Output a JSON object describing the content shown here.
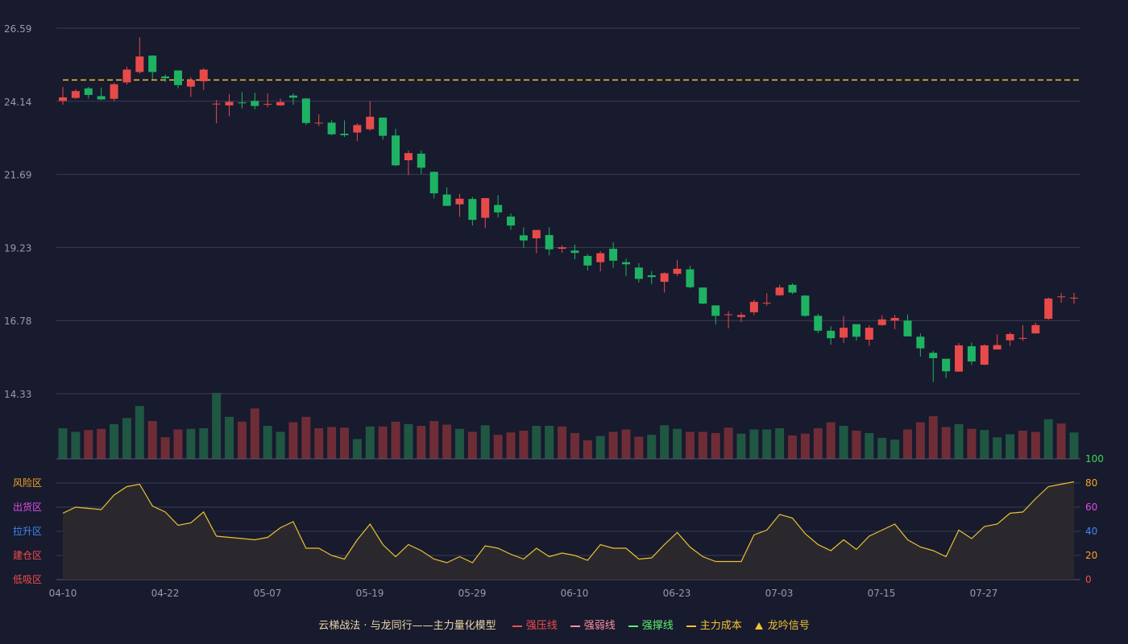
{
  "chart_data": {
    "type": "candlestick",
    "x_tick_labels": [
      "04-10",
      "04-22",
      "05-07",
      "05-19",
      "05-29",
      "06-10",
      "06-23",
      "07-03",
      "07-15",
      "07-27"
    ],
    "price_axis": {
      "ticks": [
        "26.59",
        "24.14",
        "21.69",
        "19.23",
        "16.78",
        "14.33"
      ],
      "min": 14.33,
      "max": 26.59
    },
    "cost_line": 24.85,
    "candles": [
      [
        24.15,
        24.27,
        24.62,
        24.02
      ],
      [
        24.25,
        24.48,
        24.54,
        24.22
      ],
      [
        24.57,
        24.35,
        24.62,
        24.23
      ],
      [
        24.31,
        24.2,
        24.6,
        24.18
      ],
      [
        24.22,
        24.71,
        24.75,
        24.15
      ],
      [
        24.77,
        25.2,
        25.3,
        24.7
      ],
      [
        25.12,
        25.64,
        26.28,
        25.06
      ],
      [
        25.67,
        25.12,
        25.68,
        24.87
      ],
      [
        24.97,
        24.91,
        25.04,
        24.79
      ],
      [
        25.17,
        24.68,
        25.18,
        24.57
      ],
      [
        24.63,
        24.85,
        24.95,
        24.28
      ],
      [
        24.81,
        25.2,
        25.25,
        24.52
      ],
      [
        24.05,
        24.06,
        24.18,
        23.4
      ],
      [
        24.0,
        24.12,
        24.38,
        23.63
      ],
      [
        24.1,
        24.07,
        24.45,
        23.9
      ],
      [
        24.15,
        23.98,
        24.42,
        23.87
      ],
      [
        24.05,
        24.05,
        24.4,
        23.94
      ],
      [
        24.0,
        24.11,
        24.23,
        23.98
      ],
      [
        24.33,
        24.26,
        24.4,
        24.02
      ],
      [
        24.23,
        23.41,
        24.25,
        23.34
      ],
      [
        23.41,
        23.42,
        23.7,
        23.31
      ],
      [
        23.42,
        23.03,
        23.5,
        23.0
      ],
      [
        23.05,
        23.0,
        23.5,
        22.94
      ],
      [
        23.09,
        23.34,
        23.4,
        22.8
      ],
      [
        23.2,
        23.62,
        24.14,
        23.15
      ],
      [
        23.59,
        22.98,
        23.59,
        22.85
      ],
      [
        22.99,
        21.99,
        23.22,
        21.96
      ],
      [
        22.16,
        22.4,
        22.49,
        21.66
      ],
      [
        22.38,
        21.91,
        22.49,
        21.7
      ],
      [
        21.77,
        21.05,
        21.79,
        20.88
      ],
      [
        21.01,
        20.63,
        21.25,
        20.63
      ],
      [
        20.68,
        20.87,
        21.03,
        20.26
      ],
      [
        20.86,
        20.16,
        20.93,
        19.97
      ],
      [
        20.23,
        20.89,
        20.89,
        19.88
      ],
      [
        20.66,
        20.41,
        20.99,
        20.24
      ],
      [
        20.27,
        19.97,
        20.37,
        19.83
      ],
      [
        19.64,
        19.47,
        19.91,
        19.22
      ],
      [
        19.54,
        19.82,
        19.81,
        19.04
      ],
      [
        19.65,
        19.17,
        19.91,
        18.97
      ],
      [
        19.19,
        19.24,
        19.31,
        19.05
      ],
      [
        19.13,
        19.05,
        19.33,
        18.84
      ],
      [
        18.95,
        18.63,
        19.01,
        18.46
      ],
      [
        18.74,
        19.04,
        19.11,
        18.43
      ],
      [
        19.19,
        18.79,
        19.41,
        18.54
      ],
      [
        18.74,
        18.67,
        18.86,
        18.27
      ],
      [
        18.56,
        18.18,
        18.71,
        18.06
      ],
      [
        18.3,
        18.24,
        18.44,
        18.0
      ],
      [
        18.08,
        18.37,
        18.4,
        17.72
      ],
      [
        18.35,
        18.52,
        18.82,
        18.27
      ],
      [
        18.5,
        17.9,
        18.62,
        17.86
      ],
      [
        17.89,
        17.35,
        17.88,
        17.33
      ],
      [
        17.29,
        16.94,
        17.28,
        16.65
      ],
      [
        16.97,
        16.99,
        17.1,
        16.52
      ],
      [
        16.9,
        16.97,
        17.05,
        16.73
      ],
      [
        17.06,
        17.41,
        17.48,
        16.96
      ],
      [
        17.36,
        17.38,
        17.7,
        17.28
      ],
      [
        17.63,
        17.89,
        17.98,
        17.61
      ],
      [
        17.98,
        17.72,
        18.03,
        17.67
      ],
      [
        17.62,
        16.94,
        17.63,
        16.91
      ],
      [
        16.94,
        16.44,
        17.01,
        16.36
      ],
      [
        16.44,
        16.19,
        16.59,
        15.97
      ],
      [
        16.21,
        16.54,
        16.94,
        16.03
      ],
      [
        16.66,
        16.24,
        16.66,
        16.11
      ],
      [
        16.14,
        16.54,
        16.62,
        15.93
      ],
      [
        16.63,
        16.82,
        16.96,
        16.6
      ],
      [
        16.78,
        16.87,
        16.97,
        16.49
      ],
      [
        16.78,
        16.25,
        16.99,
        16.3
      ],
      [
        16.24,
        15.85,
        16.35,
        15.57
      ],
      [
        15.7,
        15.52,
        15.77,
        14.72
      ],
      [
        15.5,
        15.08,
        15.5,
        14.85
      ],
      [
        15.07,
        15.95,
        16.03,
        15.06
      ],
      [
        15.92,
        15.41,
        16.04,
        15.29
      ],
      [
        15.3,
        15.95,
        15.99,
        15.29
      ],
      [
        15.81,
        15.96,
        16.32,
        15.85
      ],
      [
        16.12,
        16.33,
        16.39,
        15.93
      ],
      [
        16.17,
        16.2,
        16.63,
        16.1
      ],
      [
        16.35,
        16.63,
        16.71,
        16.35
      ],
      [
        16.84,
        17.52,
        17.56,
        16.8
      ],
      [
        17.59,
        17.59,
        17.7,
        17.38
      ],
      [
        17.54,
        17.55,
        17.71,
        17.34
      ]
    ],
    "volume_top_label": "100",
    "volumes": [
      [
        51,
        1
      ],
      [
        45,
        1
      ],
      [
        48,
        0
      ],
      [
        50,
        0
      ],
      [
        58,
        1
      ],
      [
        68,
        1
      ],
      [
        88,
        1
      ],
      [
        63,
        0
      ],
      [
        36,
        0
      ],
      [
        49,
        0
      ],
      [
        50,
        1
      ],
      [
        51,
        1
      ],
      [
        110,
        1
      ],
      [
        70,
        1
      ],
      [
        62,
        0
      ],
      [
        84,
        0
      ],
      [
        55,
        1
      ],
      [
        45,
        1
      ],
      [
        61,
        0
      ],
      [
        70,
        0
      ],
      [
        51,
        0
      ],
      [
        53,
        0
      ],
      [
        52,
        0
      ],
      [
        33,
        1
      ],
      [
        54,
        1
      ],
      [
        54,
        0
      ],
      [
        62,
        0
      ],
      [
        58,
        1
      ],
      [
        55,
        0
      ],
      [
        63,
        0
      ],
      [
        57,
        0
      ],
      [
        50,
        1
      ],
      [
        45,
        0
      ],
      [
        56,
        1
      ],
      [
        40,
        0
      ],
      [
        44,
        0
      ],
      [
        47,
        0
      ],
      [
        55,
        1
      ],
      [
        55,
        1
      ],
      [
        54,
        0
      ],
      [
        43,
        0
      ],
      [
        31,
        0
      ],
      [
        38,
        1
      ],
      [
        45,
        0
      ],
      [
        49,
        0
      ],
      [
        37,
        0
      ],
      [
        40,
        1
      ],
      [
        56,
        1
      ],
      [
        50,
        1
      ],
      [
        45,
        0
      ],
      [
        45,
        0
      ],
      [
        43,
        0
      ],
      [
        52,
        0
      ],
      [
        42,
        1
      ],
      [
        49,
        1
      ],
      [
        49,
        1
      ],
      [
        51,
        1
      ],
      [
        39,
        0
      ],
      [
        42,
        0
      ],
      [
        51,
        0
      ],
      [
        61,
        0
      ],
      [
        55,
        1
      ],
      [
        47,
        0
      ],
      [
        43,
        1
      ],
      [
        35,
        1
      ],
      [
        32,
        1
      ],
      [
        49,
        0
      ],
      [
        61,
        0
      ],
      [
        71,
        0
      ],
      [
        53,
        0
      ],
      [
        58,
        1
      ],
      [
        50,
        0
      ],
      [
        48,
        1
      ],
      [
        36,
        1
      ],
      [
        41,
        1
      ],
      [
        47,
        0
      ],
      [
        45,
        0
      ],
      [
        66,
        1
      ],
      [
        59,
        0
      ],
      [
        44,
        1
      ]
    ],
    "zone_labels": [
      {
        "label": "风险区",
        "color": "#f5a623"
      },
      {
        "label": "出货区",
        "color": "#e44be8"
      },
      {
        "label": "拉升区",
        "color": "#3d8bf2"
      },
      {
        "label": "建仓区",
        "color": "#f24d4d"
      },
      {
        "label": "低吸区",
        "color": "#f24d4d"
      }
    ],
    "osc_ticks": [
      {
        "label": "100",
        "value": 100,
        "color": "#3ddc4e"
      },
      {
        "label": "80",
        "value": 80,
        "color": "#f5a623"
      },
      {
        "label": "60",
        "value": 60,
        "color": "#e44be8"
      },
      {
        "label": "40",
        "value": 40,
        "color": "#3d8bf2"
      },
      {
        "label": "20",
        "value": 20,
        "color": "#f5a623"
      },
      {
        "label": "0",
        "value": 0,
        "color": "#f24d4d"
      }
    ],
    "oscillator": [
      55,
      60,
      59,
      58,
      70,
      77,
      79,
      61,
      56,
      45,
      47,
      56,
      36,
      35,
      34,
      33,
      35,
      43,
      48,
      26,
      26,
      20,
      17,
      33,
      46,
      29,
      19,
      29,
      24,
      17,
      14,
      19,
      14,
      28,
      26,
      21,
      17,
      26,
      19,
      22,
      20,
      16,
      29,
      26,
      26,
      17,
      18,
      29,
      39,
      27,
      19,
      15,
      15,
      15,
      37,
      41,
      54,
      51,
      38,
      29,
      24,
      33,
      25,
      36,
      41,
      46,
      33,
      27,
      24,
      19,
      41,
      34,
      44,
      46,
      55,
      56,
      67,
      77,
      79,
      81
    ],
    "colors": {
      "up": "#e84a4a",
      "down": "#1eb363",
      "vol_up": "#6e2d36",
      "vol_down": "#1f5742",
      "cost": "#f2c230",
      "osc_line": "#e8c233",
      "osc_fill": "#2d2a2e",
      "grid": "#3a3c52",
      "axis_text": "#9a9aa8"
    }
  },
  "legend": {
    "model": "云梯战法 · 与龙同行——主力量化模型",
    "items": [
      {
        "label": "强压线",
        "color": "#f24d4d",
        "style": "solid"
      },
      {
        "label": "强弱线",
        "color": "#ff8fa3",
        "style": "dash"
      },
      {
        "label": "强撑线",
        "color": "#5cf26b",
        "style": "solid"
      },
      {
        "label": "主力成本",
        "color": "#f2c230",
        "style": "dash"
      },
      {
        "label": "龙吟信号",
        "color": "#f2c230",
        "style": "triangle"
      }
    ]
  }
}
